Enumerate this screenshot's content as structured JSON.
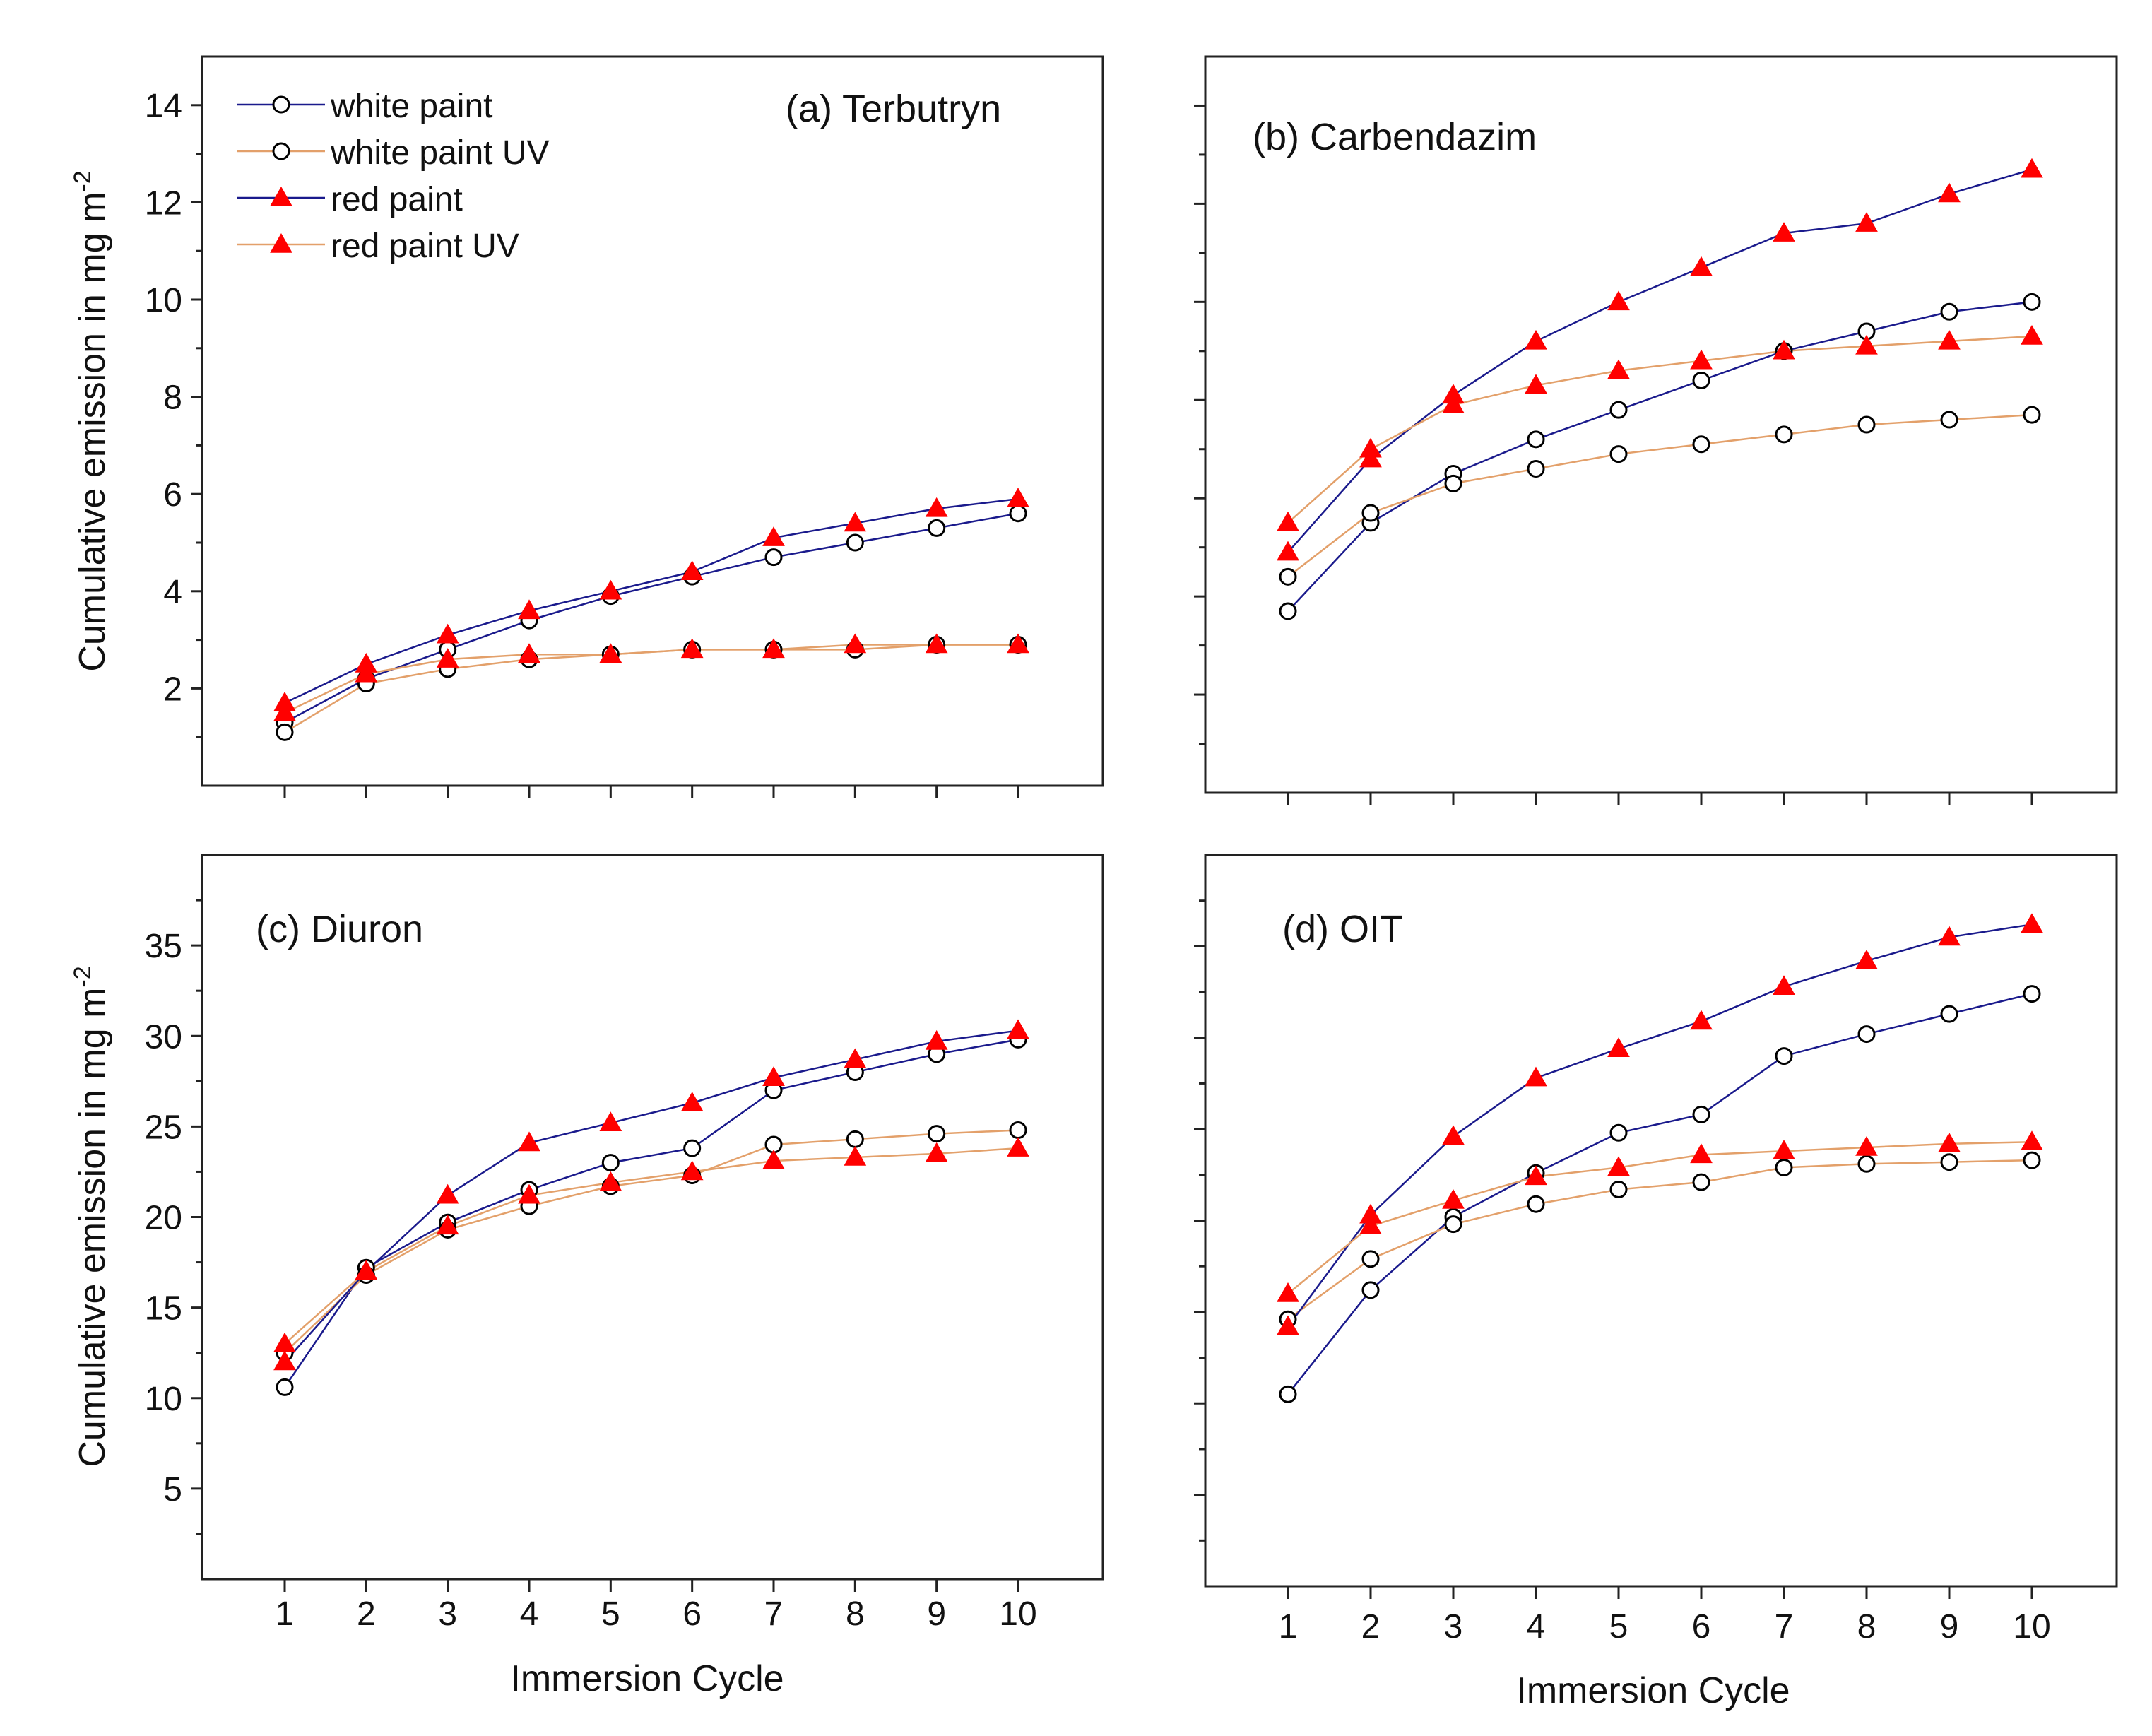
{
  "figure": {
    "y_axis_label": "Cumulative emission in mg m",
    "y_axis_label_superscript": "-2",
    "x_axis_label": "Immersion Cycle"
  },
  "colors": {
    "white_paint": "#1a1a8c",
    "white_paint_uv": "#e3a06a",
    "red_paint": "#1a1a8c",
    "red_paint_uv": "#e3a06a",
    "marker_triangle": "#ff0000",
    "marker_circle_fill": "#ffffff",
    "marker_circle_stroke": "#000000"
  },
  "legend": [
    {
      "key": "white_paint",
      "label": "white paint",
      "marker": "circle"
    },
    {
      "key": "white_paint_uv",
      "label": "white paint UV",
      "marker": "circle"
    },
    {
      "key": "red_paint",
      "label": "red paint",
      "marker": "triangle"
    },
    {
      "key": "red_paint_uv",
      "label": "red paint UV",
      "marker": "triangle"
    }
  ],
  "chart_data": [
    {
      "type": "line",
      "panel": "a",
      "title": "(a) Terbutryn",
      "xlabel": "Immersion Cycle",
      "ylabel": "Cumulative emission in mg m-2",
      "x": [
        1,
        2,
        3,
        4,
        5,
        6,
        7,
        8,
        9,
        10
      ],
      "xlim": [
        0,
        11
      ],
      "ylim": [
        0,
        15
      ],
      "yticks": [
        2,
        4,
        6,
        8,
        10,
        12,
        14
      ],
      "series": [
        {
          "name": "white paint",
          "key": "white_paint",
          "values": [
            1.3,
            2.2,
            2.8,
            3.4,
            3.9,
            4.3,
            4.7,
            5.0,
            5.3,
            5.6
          ]
        },
        {
          "name": "white paint UV",
          "key": "white_paint_uv",
          "values": [
            1.1,
            2.1,
            2.4,
            2.6,
            2.7,
            2.8,
            2.8,
            2.8,
            2.9,
            2.9
          ]
        },
        {
          "name": "red paint",
          "key": "red_paint",
          "values": [
            1.7,
            2.5,
            3.1,
            3.6,
            4.0,
            4.4,
            5.1,
            5.4,
            5.7,
            5.9
          ]
        },
        {
          "name": "red paint UV",
          "key": "red_paint_uv",
          "values": [
            1.5,
            2.3,
            2.6,
            2.7,
            2.7,
            2.8,
            2.8,
            2.9,
            2.9,
            2.9
          ]
        }
      ]
    },
    {
      "type": "line",
      "panel": "b",
      "title": "(b) Carbendazim",
      "xlabel": "Immersion Cycle",
      "ylabel": "Cumulative emission in mg m-2",
      "x": [
        1,
        2,
        3,
        4,
        5,
        6,
        7,
        8,
        9,
        10
      ],
      "xlim": [
        0,
        11
      ],
      "ylim": [
        0,
        15
      ],
      "yticks": [
        2,
        4,
        6,
        8,
        10,
        12,
        14
      ],
      "series": [
        {
          "name": "white paint",
          "key": "white_paint",
          "values": [
            3.7,
            5.5,
            6.5,
            7.2,
            7.8,
            8.4,
            9.0,
            9.4,
            9.8,
            10.0
          ]
        },
        {
          "name": "white paint UV",
          "key": "white_paint_uv",
          "values": [
            4.4,
            5.7,
            6.3,
            6.6,
            6.9,
            7.1,
            7.3,
            7.5,
            7.6,
            7.7
          ]
        },
        {
          "name": "red paint",
          "key": "red_paint",
          "values": [
            4.9,
            6.8,
            8.1,
            9.2,
            10.0,
            10.7,
            11.4,
            11.6,
            12.2,
            12.7
          ]
        },
        {
          "name": "red paint UV",
          "key": "red_paint_uv",
          "values": [
            5.5,
            7.0,
            7.9,
            8.3,
            8.6,
            8.8,
            9.0,
            9.1,
            9.2,
            9.3
          ]
        }
      ]
    },
    {
      "type": "line",
      "panel": "c",
      "title": "(c) Diuron",
      "xlabel": "Immersion Cycle",
      "ylabel": "Cumulative emission in mg m-2",
      "x": [
        1,
        2,
        3,
        4,
        5,
        6,
        7,
        8,
        9,
        10
      ],
      "xlim": [
        0,
        11
      ],
      "ylim": [
        0,
        40
      ],
      "yticks": [
        5,
        10,
        15,
        20,
        25,
        30,
        35
      ],
      "series": [
        {
          "name": "white paint",
          "key": "white_paint",
          "values": [
            10.6,
            17.2,
            19.7,
            21.5,
            23.0,
            23.8,
            27.0,
            28.0,
            29.0,
            29.8
          ]
        },
        {
          "name": "white paint UV",
          "key": "white_paint_uv",
          "values": [
            12.5,
            16.8,
            19.3,
            20.6,
            21.7,
            22.3,
            24.0,
            24.3,
            24.6,
            24.8
          ]
        },
        {
          "name": "red paint",
          "key": "red_paint",
          "values": [
            12.0,
            17.0,
            21.2,
            24.1,
            25.2,
            26.3,
            27.7,
            28.7,
            29.7,
            30.3
          ]
        },
        {
          "name": "red paint UV",
          "key": "red_paint_uv",
          "values": [
            13.0,
            17.0,
            19.5,
            21.2,
            21.9,
            22.5,
            23.1,
            23.3,
            23.5,
            23.8
          ]
        }
      ]
    },
    {
      "type": "line",
      "panel": "d",
      "title": "(d) OIT",
      "xlabel": "Immersion Cycle",
      "ylabel": "Cumulative emission in mg m-2",
      "x": [
        1,
        2,
        3,
        4,
        5,
        6,
        7,
        8,
        9,
        10
      ],
      "xlim": [
        0,
        11
      ],
      "ylim": [
        0,
        40
      ],
      "yticks": [
        5,
        10,
        15,
        20,
        25,
        30,
        35
      ],
      "series": [
        {
          "name": "white paint",
          "key": "white_paint",
          "values": [
            10.5,
            16.2,
            20.2,
            22.6,
            24.8,
            25.8,
            29.0,
            30.2,
            31.3,
            32.4
          ]
        },
        {
          "name": "white paint UV",
          "key": "white_paint_uv",
          "values": [
            14.6,
            17.9,
            19.8,
            20.9,
            21.7,
            22.1,
            22.9,
            23.1,
            23.2,
            23.3
          ]
        },
        {
          "name": "red paint",
          "key": "red_paint",
          "values": [
            14.2,
            20.3,
            24.6,
            27.8,
            29.4,
            30.9,
            32.8,
            34.2,
            35.5,
            36.2
          ]
        },
        {
          "name": "red paint UV",
          "key": "red_paint_uv",
          "values": [
            16.0,
            19.7,
            21.1,
            22.4,
            22.9,
            23.6,
            23.8,
            24.0,
            24.2,
            24.3
          ]
        }
      ]
    }
  ]
}
